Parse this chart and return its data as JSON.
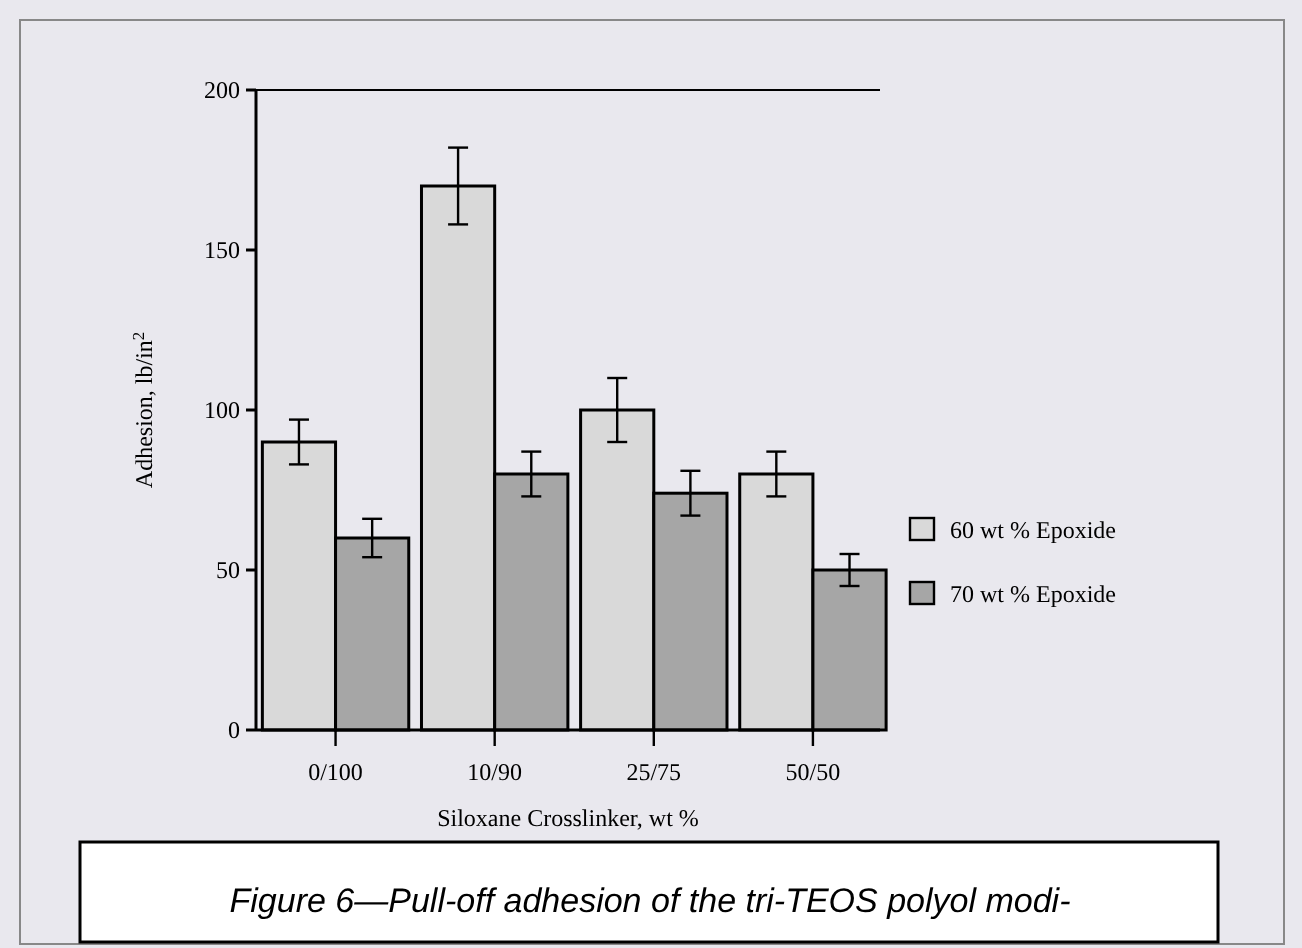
{
  "chart_data": {
    "type": "bar",
    "xlabel": "Siloxane Crosslinker, wt %",
    "ylabel": "Adhesion, lb/in$^{2}$",
    "categories": [
      "0/100",
      "10/90",
      "25/75",
      "50/50"
    ],
    "series": [
      {
        "name": "60 wt % Epoxide",
        "color": "#d9d9d9",
        "values": [
          90,
          170,
          100,
          80
        ],
        "errors": [
          7,
          12,
          10,
          7
        ]
      },
      {
        "name": "70 wt % Epoxide",
        "color": "#a6a6a6",
        "values": [
          60,
          80,
          74,
          50
        ],
        "errors": [
          6,
          7,
          7,
          5
        ]
      }
    ],
    "ylim": [
      0,
      200
    ],
    "yticks": [
      0,
      50,
      100,
      150,
      200
    ],
    "grid": false,
    "legend": "right",
    "annotations": [
      "Figure 6—Pull-off adhesion of the tri-TEOS polyol modi-"
    ]
  }
}
